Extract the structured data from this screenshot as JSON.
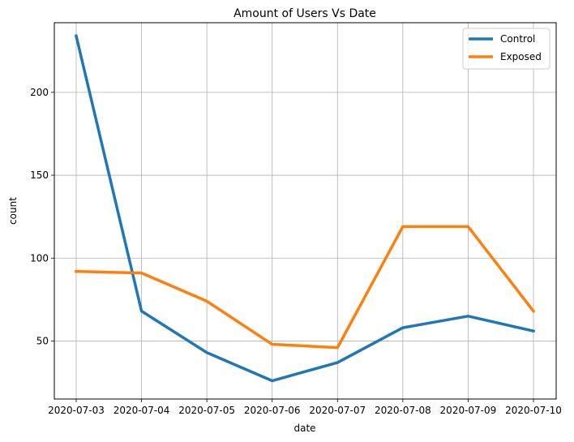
{
  "chart_data": {
    "type": "line",
    "title": "Amount of Users Vs Date",
    "xlabel": "date",
    "ylabel": "count",
    "categories": [
      "2020-07-03",
      "2020-07-04",
      "2020-07-05",
      "2020-07-06",
      "2020-07-07",
      "2020-07-08",
      "2020-07-09",
      "2020-07-10"
    ],
    "yticks": [
      50,
      100,
      150,
      200
    ],
    "ylim": [
      15,
      242
    ],
    "grid": true,
    "legend_position": "top-right",
    "series": [
      {
        "name": "Control",
        "color": "#1f77b4",
        "values": [
          234,
          68,
          43,
          26,
          37,
          58,
          65,
          56
        ]
      },
      {
        "name": "Exposed",
        "color": "#ff7f0e",
        "values": [
          92,
          91,
          74,
          48,
          46,
          119,
          119,
          68
        ]
      }
    ]
  }
}
